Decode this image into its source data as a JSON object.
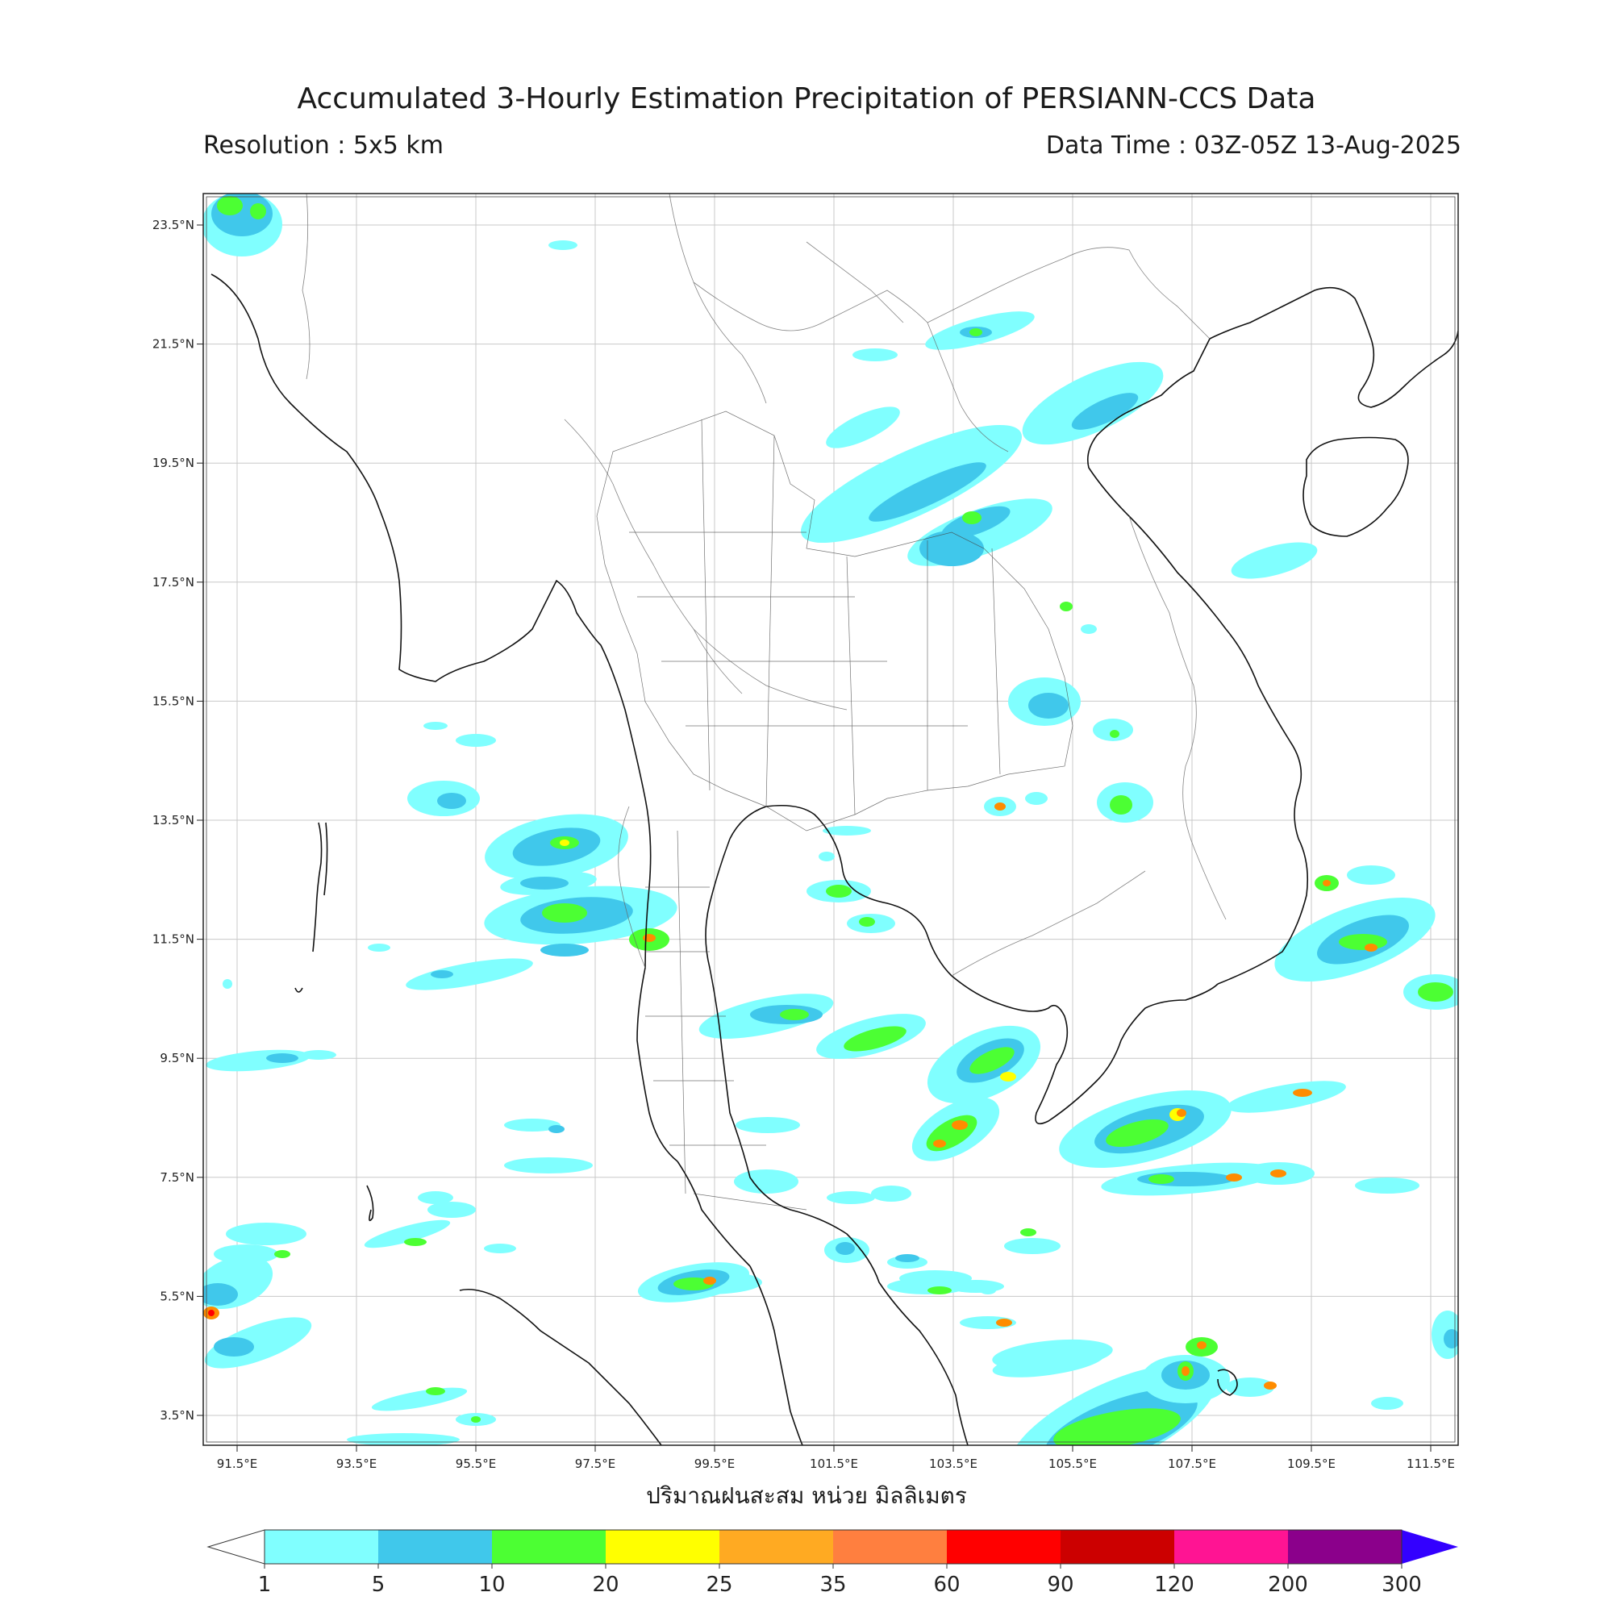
{
  "title": "Accumulated 3-Hourly Estimation Precipitation of PERSIANN-CCS Data",
  "resolution": "Resolution : 5x5 km",
  "data_time": "Data Time : 03Z-05Z 13-Aug-2025",
  "x_axis_label": "ปริมาณฝนสะสม หน่วย มิลลิเมตร",
  "lon_ticks": [
    "91.5°E",
    "93.5°E",
    "95.5°E",
    "97.5°E",
    "99.5°E",
    "101.5°E",
    "103.5°E",
    "105.5°E",
    "107.5°E",
    "109.5°E",
    "111.5°E"
  ],
  "lat_ticks": [
    "23.5°N",
    "21.5°N",
    "19.5°N",
    "17.5°N",
    "15.5°N",
    "13.5°N",
    "11.5°N",
    "9.5°N",
    "7.5°N",
    "5.5°N",
    "3.5°N"
  ],
  "colorbar": {
    "labels": [
      "1",
      "5",
      "10",
      "20",
      "25",
      "35",
      "60",
      "90",
      "120",
      "200",
      "300"
    ],
    "colors": [
      "#80ffff",
      "#40c8eb",
      "#4cff33",
      "#ffff00",
      "#ffaa22",
      "#ff7f3f",
      "#ff0000",
      "#cc0000",
      "#ff1493",
      "#8b008b"
    ],
    "over_color": "#3300ff",
    "under_color": "#ffffff"
  },
  "rain_colors": {
    "light": "#80ffff",
    "moderate": "#40c8eb",
    "heavy": "#4cff33",
    "yellow": "#ffff00",
    "orange": "#ff8c00",
    "red": "#ff0000"
  }
}
